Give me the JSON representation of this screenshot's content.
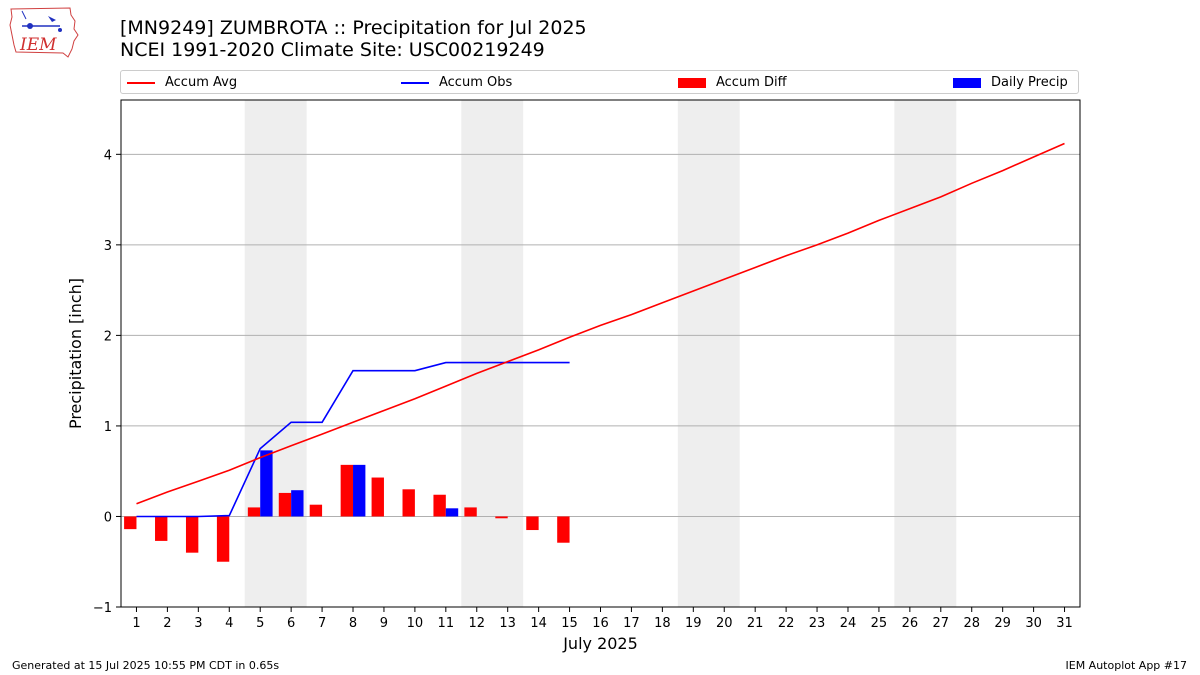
{
  "header": {
    "title_line1": "[MN9249] ZUMBROTA :: Precipitation for Jul 2025",
    "title_line2": "NCEI 1991-2020 Climate Site: USC00219249"
  },
  "logo": {
    "text": "IEM"
  },
  "footer": {
    "left": "Generated at 15 Jul 2025 10:55 PM CDT in 0.65s",
    "right": "IEM Autoplot App #17"
  },
  "legend": {
    "accum_avg": "Accum Avg",
    "accum_obs": "Accum Obs",
    "accum_diff": "Accum Diff",
    "daily_precip": "Daily Precip"
  },
  "colors": {
    "avg": "#ff0000",
    "obs": "#0000ff",
    "diff": "#ff0000",
    "daily": "#0000ff",
    "weekend_shade": "#eeeeee",
    "grid": "#b0b0b0"
  },
  "chart_data": {
    "type": "bar",
    "xlabel": "July 2025",
    "ylabel": "Precipitation [inch]",
    "ylim": [
      -1.0,
      4.6
    ],
    "yticks": [
      -1,
      0,
      1,
      2,
      3,
      4
    ],
    "ytick_labels": [
      "−1",
      "0",
      "1",
      "2",
      "3",
      "4"
    ],
    "grid": "horizontal",
    "legend_position": "top",
    "x": [
      1,
      2,
      3,
      4,
      5,
      6,
      7,
      8,
      9,
      10,
      11,
      12,
      13,
      14,
      15,
      16,
      17,
      18,
      19,
      20,
      21,
      22,
      23,
      24,
      25,
      26,
      27,
      28,
      29,
      30,
      31
    ],
    "weekends": [
      [
        5,
        6
      ],
      [
        12,
        13
      ],
      [
        19,
        20
      ],
      [
        26,
        27
      ]
    ],
    "series": [
      {
        "name": "Accum Avg",
        "type": "line",
        "x": [
          1,
          2,
          3,
          4,
          5,
          6,
          7,
          8,
          9,
          10,
          11,
          12,
          13,
          14,
          15,
          16,
          17,
          18,
          19,
          20,
          21,
          22,
          23,
          24,
          25,
          26,
          27,
          28,
          29,
          30,
          31
        ],
        "values": [
          0.14,
          0.27,
          0.39,
          0.51,
          0.65,
          0.78,
          0.91,
          1.04,
          1.17,
          1.3,
          1.44,
          1.58,
          1.71,
          1.84,
          1.98,
          2.11,
          2.23,
          2.36,
          2.49,
          2.62,
          2.75,
          2.88,
          3.0,
          3.13,
          3.27,
          3.4,
          3.53,
          3.68,
          3.82,
          3.97,
          4.12
        ]
      },
      {
        "name": "Accum Obs",
        "type": "line",
        "x": [
          1,
          2,
          3,
          4,
          5,
          6,
          7,
          8,
          9,
          10,
          11,
          12,
          13,
          14,
          15
        ],
        "values": [
          0.0,
          0.0,
          0.0,
          0.01,
          0.75,
          1.04,
          1.04,
          1.61,
          1.61,
          1.61,
          1.7,
          1.7,
          1.7,
          1.7,
          1.7
        ]
      },
      {
        "name": "Accum Diff",
        "type": "bar",
        "x": [
          1,
          2,
          3,
          4,
          5,
          6,
          7,
          8,
          9,
          10,
          11,
          12,
          13,
          14,
          15
        ],
        "values": [
          -0.14,
          -0.27,
          -0.4,
          -0.5,
          0.1,
          0.26,
          0.13,
          0.57,
          0.43,
          0.3,
          0.24,
          0.1,
          -0.02,
          -0.15,
          -0.29
        ]
      },
      {
        "name": "Daily Precip",
        "type": "bar",
        "x": [
          1,
          2,
          3,
          4,
          5,
          6,
          7,
          8,
          9,
          10,
          11,
          12,
          13,
          14,
          15
        ],
        "values": [
          0.0,
          0.0,
          0.0,
          0.0,
          0.73,
          0.29,
          0.0,
          0.57,
          0.0,
          0.0,
          0.09,
          0.0,
          0.0,
          0.0,
          0.0
        ]
      }
    ]
  }
}
